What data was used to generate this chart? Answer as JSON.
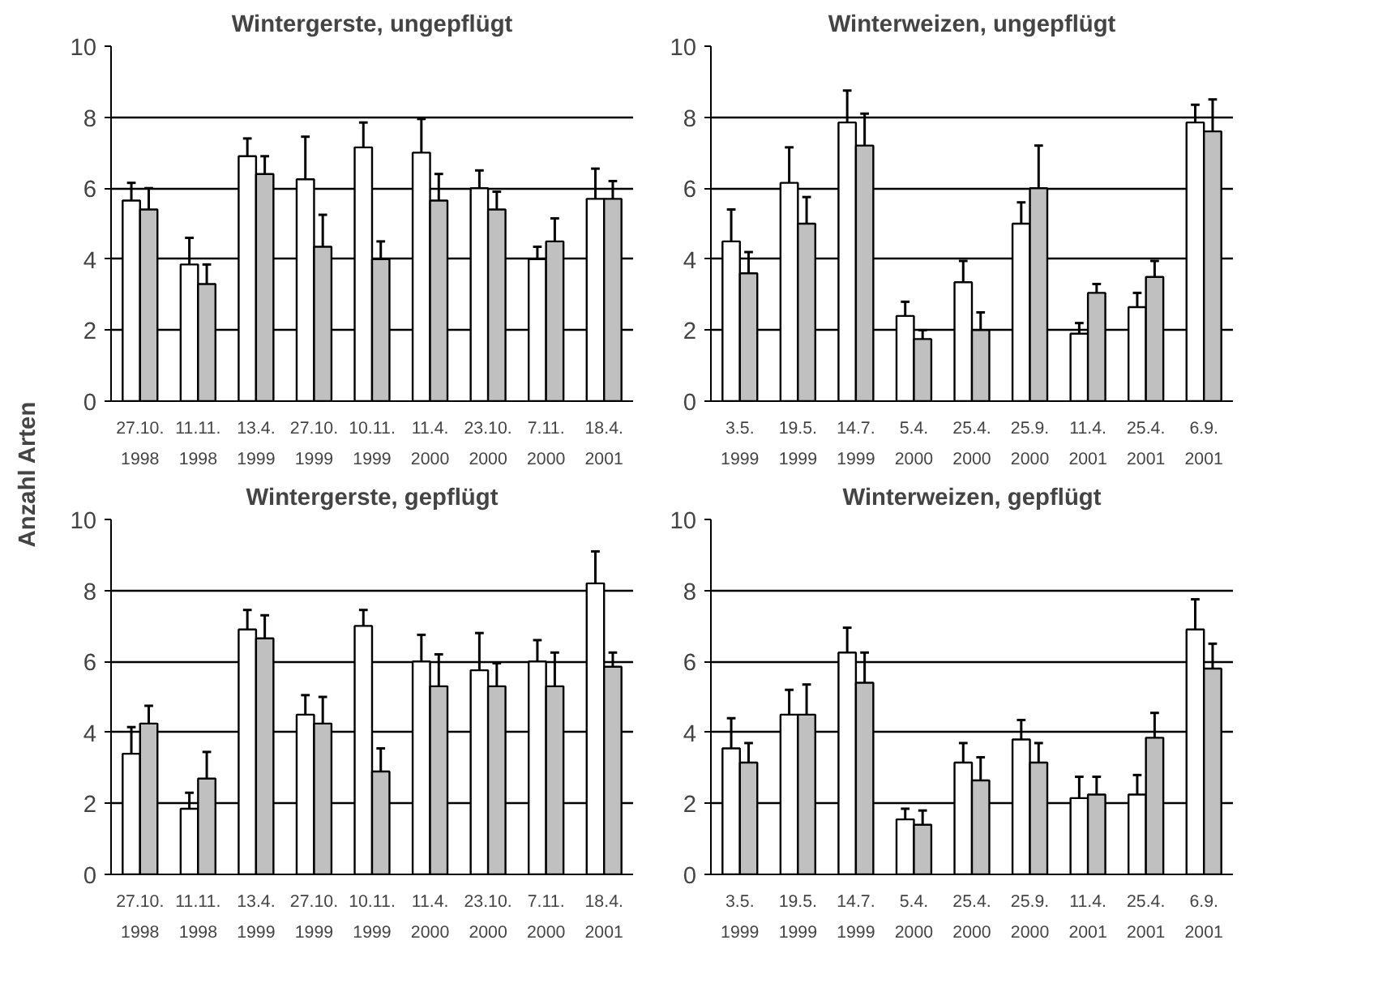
{
  "chart_data": [
    {
      "type": "bar",
      "title": "Wintergerste, ungepflügt",
      "ylabel": "Anzahl Arten",
      "categories": [
        "27.10.\n1998",
        "11.11.\n1998",
        "13.4.\n1999",
        "27.10.\n1999",
        "10.11.\n1999",
        "11.4.\n2000",
        "23.10.\n2000",
        "7.11.\n2000",
        "18.4.\n2001"
      ],
      "ylim": [
        0,
        10
      ],
      "yticks": [
        0,
        2,
        4,
        6,
        8,
        10
      ],
      "grid": "y",
      "series": [
        {
          "color": "#ffffff",
          "values": [
            5.65,
            3.85,
            6.9,
            6.25,
            7.15,
            7.0,
            6.0,
            4.0,
            5.7
          ],
          "errors": [
            [
              5.65,
              6.15
            ],
            [
              3.85,
              4.6
            ],
            [
              6.9,
              7.4
            ],
            [
              6.25,
              7.45
            ],
            [
              7.15,
              7.85
            ],
            [
              7.0,
              7.95
            ],
            [
              6.0,
              6.5
            ],
            [
              4.0,
              4.35
            ],
            [
              5.7,
              6.55
            ]
          ]
        },
        {
          "color": "#c0c0c0",
          "values": [
            5.4,
            3.3,
            6.4,
            4.35,
            4.0,
            5.65,
            5.4,
            4.5,
            5.7
          ],
          "errors": [
            [
              5.4,
              6.0
            ],
            [
              3.3,
              3.85
            ],
            [
              6.4,
              6.9
            ],
            [
              4.35,
              5.25
            ],
            [
              4.0,
              4.5
            ],
            [
              5.65,
              6.4
            ],
            [
              5.4,
              5.9
            ],
            [
              4.5,
              5.15
            ],
            [
              5.7,
              6.2
            ]
          ]
        }
      ]
    },
    {
      "type": "bar",
      "title": "Winterweizen, ungepflügt",
      "categories": [
        "3.5.\n1999",
        "19.5.\n1999",
        "14.7.\n1999",
        "5.4.\n2000",
        "25.4.\n2000",
        "25.9.\n2000",
        "11.4.\n2001",
        "25.4.\n2001",
        "6.9.\n2001"
      ],
      "ylim": [
        0,
        10
      ],
      "yticks": [
        0,
        2,
        4,
        6,
        8,
        10
      ],
      "grid": "y",
      "series": [
        {
          "color": "#ffffff",
          "values": [
            4.5,
            6.15,
            7.85,
            2.4,
            3.35,
            5.0,
            1.9,
            2.65,
            7.85
          ],
          "errors": [
            [
              4.5,
              5.4
            ],
            [
              6.15,
              7.15
            ],
            [
              7.85,
              8.75
            ],
            [
              2.4,
              2.8
            ],
            [
              3.35,
              3.95
            ],
            [
              5.0,
              5.6
            ],
            [
              1.9,
              2.2
            ],
            [
              2.65,
              3.05
            ],
            [
              7.85,
              8.35
            ]
          ]
        },
        {
          "color": "#c0c0c0",
          "values": [
            3.6,
            5.0,
            7.2,
            1.75,
            2.0,
            6.0,
            3.05,
            3.5,
            7.6
          ],
          "errors": [
            [
              3.6,
              4.2
            ],
            [
              5.0,
              5.75
            ],
            [
              7.2,
              8.1
            ],
            [
              1.75,
              2.0
            ],
            [
              2.0,
              2.5
            ],
            [
              6.0,
              7.2
            ],
            [
              3.05,
              3.3
            ],
            [
              3.5,
              3.95
            ],
            [
              7.6,
              8.5
            ]
          ]
        }
      ]
    },
    {
      "type": "bar",
      "title": "Wintergerste, gepflügt",
      "categories": [
        "27.10.\n1998",
        "11.11.\n1998",
        "13.4.\n1999",
        "27.10.\n1999",
        "10.11.\n1999",
        "11.4.\n2000",
        "23.10.\n2000",
        "7.11.\n2000",
        "18.4.\n2001"
      ],
      "ylim": [
        0,
        10
      ],
      "yticks": [
        0,
        2,
        4,
        6,
        8,
        10
      ],
      "grid": "y",
      "series": [
        {
          "color": "#ffffff",
          "values": [
            3.4,
            1.85,
            6.9,
            4.5,
            7.0,
            6.0,
            5.75,
            6.0,
            8.2
          ],
          "errors": [
            [
              3.4,
              4.15
            ],
            [
              1.85,
              2.3
            ],
            [
              6.9,
              7.45
            ],
            [
              4.5,
              5.05
            ],
            [
              7.0,
              7.45
            ],
            [
              6.0,
              6.75
            ],
            [
              5.75,
              6.8
            ],
            [
              6.0,
              6.6
            ],
            [
              8.2,
              9.1
            ]
          ]
        },
        {
          "color": "#c0c0c0",
          "values": [
            4.25,
            2.7,
            6.65,
            4.25,
            2.9,
            5.3,
            5.3,
            5.3,
            5.85
          ],
          "errors": [
            [
              4.25,
              4.75
            ],
            [
              2.7,
              3.45
            ],
            [
              6.65,
              7.3
            ],
            [
              4.25,
              5.0
            ],
            [
              2.9,
              3.55
            ],
            [
              5.3,
              6.2
            ],
            [
              5.3,
              5.95
            ],
            [
              5.3,
              6.25
            ],
            [
              5.85,
              6.25
            ]
          ]
        }
      ]
    },
    {
      "type": "bar",
      "title": "Winterweizen, gepflügt",
      "categories": [
        "3.5.\n1999",
        "19.5.\n1999",
        "14.7.\n1999",
        "5.4.\n2000",
        "25.4.\n2000",
        "25.9.\n2000",
        "11.4.\n2001",
        "25.4.\n2001",
        "6.9.\n2001"
      ],
      "ylim": [
        0,
        10
      ],
      "yticks": [
        0,
        2,
        4,
        6,
        8,
        10
      ],
      "grid": "y",
      "series": [
        {
          "color": "#ffffff",
          "values": [
            3.55,
            4.5,
            6.25,
            1.55,
            3.15,
            3.8,
            2.15,
            2.25,
            6.9
          ],
          "errors": [
            [
              3.55,
              4.4
            ],
            [
              4.5,
              5.2
            ],
            [
              6.25,
              6.95
            ],
            [
              1.55,
              1.85
            ],
            [
              3.15,
              3.7
            ],
            [
              3.8,
              4.35
            ],
            [
              2.15,
              2.75
            ],
            [
              2.25,
              2.8
            ],
            [
              6.9,
              7.75
            ]
          ]
        },
        {
          "color": "#c0c0c0",
          "values": [
            3.15,
            4.5,
            5.4,
            1.4,
            2.65,
            3.15,
            2.25,
            3.85,
            5.8
          ],
          "errors": [
            [
              3.15,
              3.7
            ],
            [
              4.5,
              5.35
            ],
            [
              5.4,
              6.25
            ],
            [
              1.4,
              1.8
            ],
            [
              2.65,
              3.3
            ],
            [
              3.15,
              3.7
            ],
            [
              2.25,
              2.75
            ],
            [
              3.85,
              4.55
            ],
            [
              5.8,
              6.5
            ]
          ]
        }
      ]
    }
  ]
}
